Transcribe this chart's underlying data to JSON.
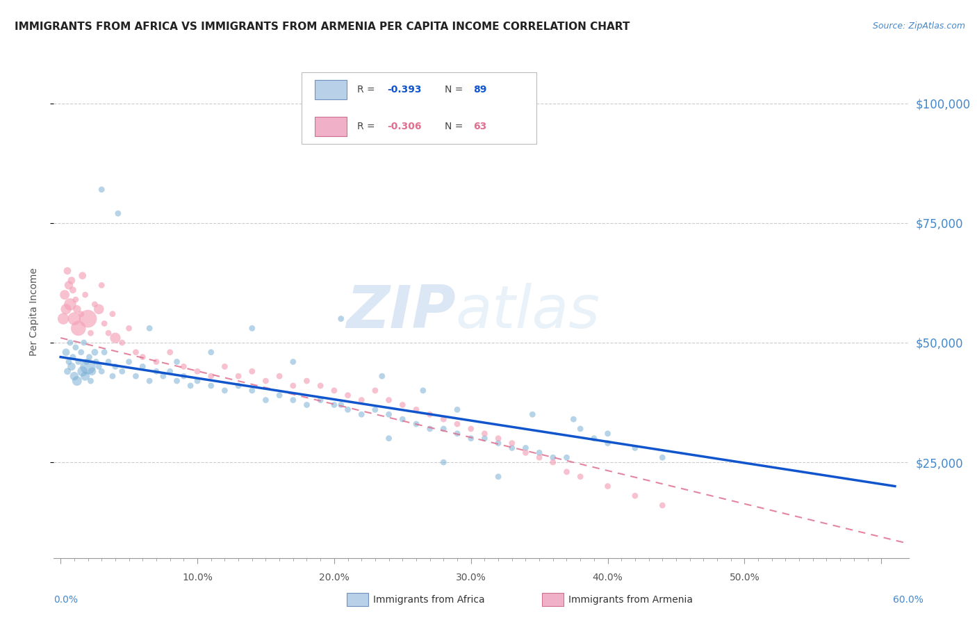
{
  "title": "IMMIGRANTS FROM AFRICA VS IMMIGRANTS FROM ARMENIA PER CAPITA INCOME CORRELATION CHART",
  "source": "Source: ZipAtlas.com",
  "ylabel": "Per Capita Income",
  "xlabel_ticks": [
    "0.0%",
    "",
    "",
    "",
    "",
    "",
    "",
    "",
    "",
    "",
    "10.0%",
    "",
    "",
    "",
    "",
    "",
    "",
    "",
    "",
    "",
    "20.0%",
    "",
    "",
    "",
    "",
    "",
    "",
    "",
    "",
    "",
    "30.0%",
    "",
    "",
    "",
    "",
    "",
    "",
    "",
    "",
    "",
    "40.0%",
    "",
    "",
    "",
    "",
    "",
    "",
    "",
    "",
    "",
    "50.0%",
    "",
    "",
    "",
    "",
    "",
    "",
    "",
    "",
    "",
    "60.0%"
  ],
  "xlabel_vals": [
    0,
    1,
    2,
    3,
    4,
    5,
    6,
    7,
    8,
    9,
    10,
    11,
    12,
    13,
    14,
    15,
    16,
    17,
    18,
    19,
    20,
    21,
    22,
    23,
    24,
    25,
    26,
    27,
    28,
    29,
    30,
    31,
    32,
    33,
    34,
    35,
    36,
    37,
    38,
    39,
    40,
    41,
    42,
    43,
    44,
    45,
    46,
    47,
    48,
    49,
    50,
    51,
    52,
    53,
    54,
    55,
    56,
    57,
    58,
    59,
    60
  ],
  "xlabel_major_ticks": [
    0,
    10,
    20,
    30,
    40,
    50,
    60
  ],
  "xlabel_major_labels": [
    "0.0%",
    "10.0%",
    "20.0%",
    "30.0%",
    "40.0%",
    "50.0%",
    "60.0%"
  ],
  "ytick_labels": [
    "$25,000",
    "$50,000",
    "$75,000",
    "$100,000"
  ],
  "ytick_vals": [
    25000,
    50000,
    75000,
    100000
  ],
  "ylim": [
    5000,
    108000
  ],
  "xlim": [
    -0.5,
    62
  ],
  "africa_R": -0.393,
  "africa_N": 89,
  "armenia_R": -0.306,
  "armenia_N": 63,
  "africa_color": "#7bafd4",
  "armenia_color": "#f4a0b8",
  "africa_line_color": "#1155cc",
  "armenia_line_color": "#e07090",
  "legend_box_africa_face": "#b8d0e8",
  "legend_box_africa_edge": "#7090c0",
  "legend_box_armenia_face": "#f0b0c8",
  "legend_box_armenia_edge": "#d07090",
  "title_color": "#222222",
  "source_color": "#4488cc",
  "right_tick_color": "#4488cc",
  "watermark_color": "#d0e0f0",
  "grid_color": "#cccccc",
  "africa_x": [
    0.4,
    0.5,
    0.6,
    0.7,
    0.8,
    0.9,
    1.0,
    1.1,
    1.2,
    1.3,
    1.5,
    1.6,
    1.7,
    1.8,
    1.9,
    2.0,
    2.1,
    2.2,
    2.3,
    2.5,
    2.6,
    2.8,
    3.0,
    3.2,
    3.5,
    3.8,
    4.0,
    4.5,
    5.0,
    5.5,
    6.0,
    6.5,
    7.0,
    7.5,
    8.0,
    8.5,
    9.0,
    9.5,
    10.0,
    11.0,
    12.0,
    13.0,
    14.0,
    15.0,
    16.0,
    17.0,
    18.0,
    19.0,
    20.0,
    20.5,
    21.0,
    22.0,
    23.0,
    24.0,
    25.0,
    26.0,
    27.0,
    28.0,
    29.0,
    30.0,
    31.0,
    32.0,
    33.0,
    34.0,
    35.0,
    36.0,
    37.0,
    38.0,
    39.0,
    40.0,
    42.0,
    44.0,
    20.5,
    23.5,
    26.5,
    29.0,
    34.5,
    37.5,
    40.0,
    28.0,
    32.0,
    24.0,
    17.0,
    14.0,
    11.0,
    8.5,
    6.5,
    4.2,
    3.0
  ],
  "africa_y": [
    48000,
    44000,
    46000,
    50000,
    45000,
    47000,
    43000,
    49000,
    42000,
    46000,
    48000,
    44000,
    50000,
    43000,
    46000,
    45000,
    47000,
    42000,
    44000,
    48000,
    46000,
    45000,
    44000,
    48000,
    46000,
    43000,
    45000,
    44000,
    46000,
    43000,
    45000,
    42000,
    44000,
    43000,
    44000,
    42000,
    43000,
    41000,
    42000,
    41000,
    40000,
    41000,
    40000,
    38000,
    39000,
    38000,
    37000,
    38000,
    37000,
    37000,
    36000,
    35000,
    36000,
    35000,
    34000,
    33000,
    32000,
    32000,
    31000,
    30000,
    30000,
    29000,
    28000,
    28000,
    27000,
    26000,
    26000,
    32000,
    30000,
    29000,
    28000,
    26000,
    55000,
    43000,
    40000,
    36000,
    35000,
    34000,
    31000,
    25000,
    22000,
    30000,
    46000,
    53000,
    48000,
    46000,
    53000,
    77000,
    82000
  ],
  "africa_size": [
    30,
    25,
    20,
    20,
    35,
    20,
    40,
    20,
    50,
    20,
    20,
    55,
    20,
    45,
    20,
    130,
    20,
    20,
    35,
    25,
    20,
    20,
    20,
    20,
    20,
    20,
    20,
    20,
    20,
    20,
    20,
    20,
    20,
    20,
    20,
    20,
    20,
    20,
    20,
    20,
    20,
    20,
    20,
    20,
    20,
    20,
    20,
    20,
    20,
    20,
    20,
    20,
    20,
    20,
    20,
    20,
    20,
    20,
    20,
    20,
    20,
    20,
    20,
    20,
    20,
    20,
    20,
    20,
    20,
    20,
    20,
    20,
    20,
    20,
    20,
    20,
    20,
    20,
    20,
    20,
    20,
    20,
    20,
    20,
    20,
    20,
    20,
    20,
    20
  ],
  "armenia_x": [
    0.2,
    0.3,
    0.4,
    0.5,
    0.6,
    0.7,
    0.8,
    0.9,
    1.0,
    1.1,
    1.2,
    1.3,
    1.5,
    1.6,
    1.8,
    2.0,
    2.2,
    2.5,
    2.8,
    3.0,
    3.2,
    3.5,
    3.8,
    4.0,
    4.5,
    5.0,
    5.5,
    6.0,
    7.0,
    8.0,
    9.0,
    10.0,
    11.0,
    12.0,
    13.0,
    14.0,
    15.0,
    16.0,
    17.0,
    18.0,
    19.0,
    20.0,
    21.0,
    22.0,
    23.0,
    24.0,
    25.0,
    26.0,
    27.0,
    28.0,
    29.0,
    30.0,
    31.0,
    32.0,
    33.0,
    34.0,
    35.0,
    36.0,
    37.0,
    38.0,
    40.0,
    42.0,
    44.0
  ],
  "armenia_y": [
    55000,
    60000,
    57000,
    65000,
    62000,
    58000,
    63000,
    61000,
    55000,
    59000,
    57000,
    53000,
    56000,
    64000,
    60000,
    55000,
    52000,
    58000,
    57000,
    62000,
    54000,
    52000,
    56000,
    51000,
    50000,
    53000,
    48000,
    47000,
    46000,
    48000,
    45000,
    44000,
    43000,
    45000,
    43000,
    44000,
    42000,
    43000,
    41000,
    42000,
    41000,
    40000,
    39000,
    38000,
    40000,
    38000,
    37000,
    36000,
    35000,
    34000,
    33000,
    32000,
    31000,
    30000,
    29000,
    27000,
    26000,
    25000,
    23000,
    22000,
    20000,
    18000,
    16000
  ],
  "armenia_size": [
    70,
    50,
    60,
    30,
    40,
    80,
    30,
    25,
    90,
    20,
    35,
    120,
    20,
    30,
    20,
    170,
    20,
    20,
    55,
    20,
    20,
    20,
    20,
    60,
    20,
    20,
    20,
    20,
    20,
    20,
    20,
    20,
    20,
    20,
    20,
    20,
    20,
    20,
    20,
    20,
    20,
    20,
    20,
    20,
    20,
    20,
    20,
    20,
    20,
    20,
    20,
    20,
    20,
    20,
    20,
    20,
    20,
    20,
    20,
    20,
    20,
    20,
    20
  ]
}
